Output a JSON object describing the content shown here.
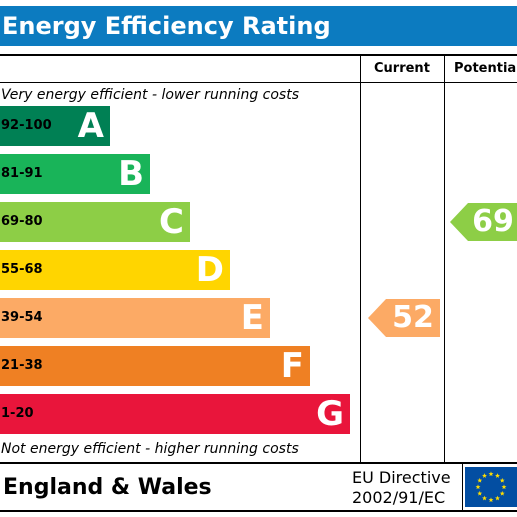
{
  "title": "Energy Efficiency Rating",
  "columns": {
    "current": "Current",
    "potential": "Potential"
  },
  "notes": {
    "top": "Very energy efficient - lower running costs",
    "bottom": "Not energy efficient - higher running costs"
  },
  "footer": {
    "country": "England & Wales",
    "directive_line1": "EU Directive",
    "directive_line2": "2002/91/EC",
    "flag_icon": "eu-flag-icon"
  },
  "chart_data": {
    "type": "bar",
    "title": "Energy Efficiency Rating",
    "categories": [
      "A",
      "B",
      "C",
      "D",
      "E",
      "F",
      "G"
    ],
    "bands": [
      {
        "letter": "A",
        "range": "92-100",
        "min": 92,
        "max": 100,
        "color": "#008054",
        "text_color": "#000000"
      },
      {
        "letter": "B",
        "range": "81-91",
        "min": 81,
        "max": 91,
        "color": "#19b459",
        "text_color": "#000000"
      },
      {
        "letter": "C",
        "range": "69-80",
        "min": 69,
        "max": 80,
        "color": "#8dce46",
        "text_color": "#000000"
      },
      {
        "letter": "D",
        "range": "55-68",
        "min": 55,
        "max": 68,
        "color": "#ffd500",
        "text_color": "#000000"
      },
      {
        "letter": "E",
        "range": "39-54",
        "min": 39,
        "max": 54,
        "color": "#fcaa65",
        "text_color": "#000000"
      },
      {
        "letter": "F",
        "range": "21-38",
        "min": 21,
        "max": 38,
        "color": "#ef8023",
        "text_color": "#000000"
      },
      {
        "letter": "G",
        "range": "1-20",
        "min": 1,
        "max": 20,
        "color": "#e9153b",
        "text_color": "#000000"
      }
    ],
    "current": {
      "value": 52,
      "band": "E",
      "color": "#fcaa65"
    },
    "potential": {
      "value": 69,
      "band": "C",
      "color": "#8dce46"
    }
  }
}
